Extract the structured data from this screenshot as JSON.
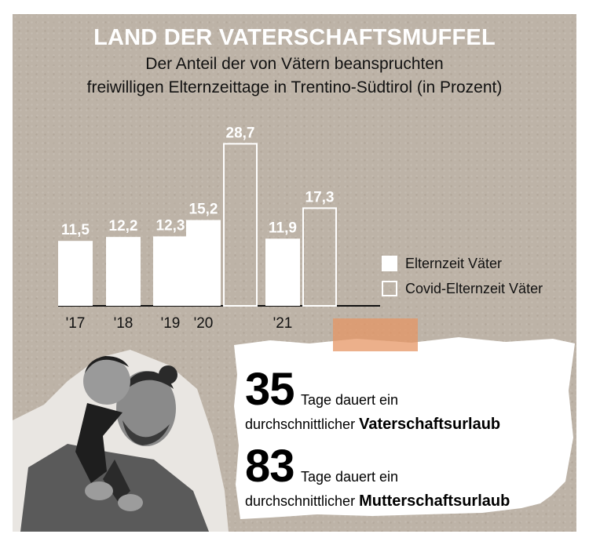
{
  "title": "LAND DER VATERSCHAFTSMUFFEL",
  "subtitle_line1": "Der Anteil der von Vätern beanspruchten",
  "subtitle_line2": "freiwilligen Elternzeittage in Trentino-Südtirol (in Prozent)",
  "colors": {
    "background": "#bdb3a7",
    "bar": "#ffffff",
    "tape": "#e6966a"
  },
  "chart_data": {
    "type": "bar",
    "title": "Der Anteil der von Vätern beanspruchten freiwilligen Elternzeittage in Trentino-Südtirol (in Prozent)",
    "ylim": [
      0,
      30
    ],
    "legend_position": "right",
    "grid": false,
    "categories": [
      "'17",
      "'18",
      "'19",
      "'20",
      "'21"
    ],
    "series": [
      {
        "name": "Elternzeit Väter",
        "style": "filled",
        "values": [
          11.5,
          12.2,
          12.3,
          15.2,
          11.9
        ],
        "labels": [
          "11,5",
          "12,2",
          "12,3",
          "15,2",
          "11,9"
        ]
      },
      {
        "name": "Covid-Elternzeit Väter",
        "style": "outline",
        "values": [
          null,
          null,
          null,
          28.7,
          17.3
        ],
        "labels": [
          "",
          "",
          "",
          "28,7",
          "17,3"
        ]
      }
    ]
  },
  "legend": {
    "item1": "Elternzeit Väter",
    "item2": "Covid-Elternzeit Väter"
  },
  "facts": [
    {
      "number": "35",
      "text1": "Tage dauert ein",
      "text2": "durchschnittlicher",
      "bold": "Vaterschaftsurlaub"
    },
    {
      "number": "83",
      "text1": "Tage dauert ein",
      "text2": "durchschnittlicher",
      "bold": "Mutterschaftsurlaub"
    }
  ]
}
